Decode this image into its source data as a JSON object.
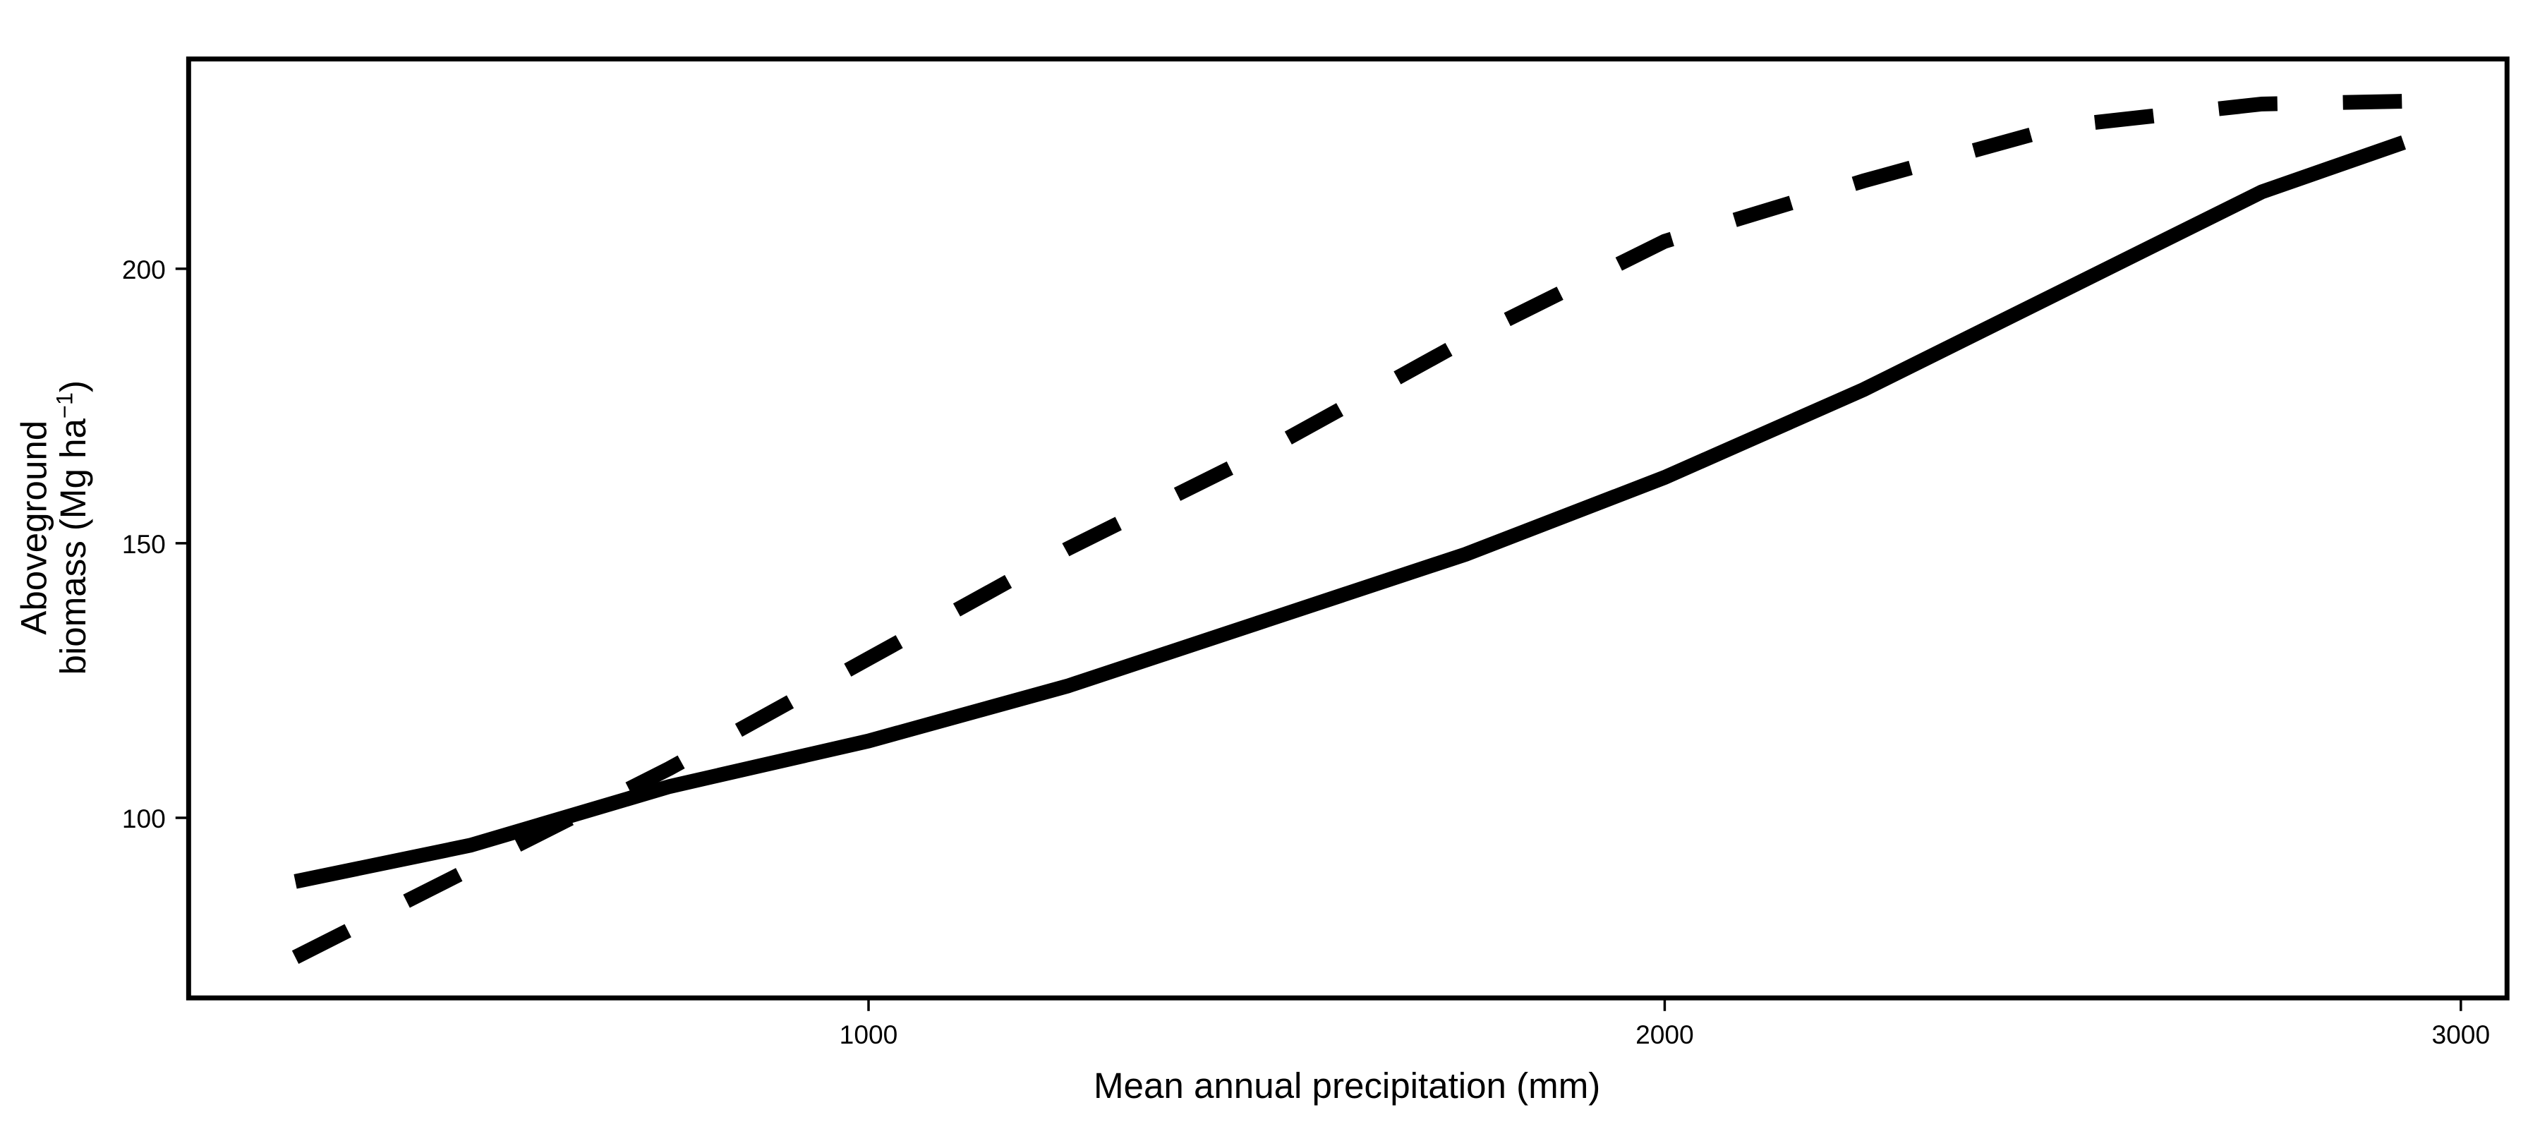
{
  "chart_data": {
    "type": "line",
    "xlabel": "Mean annual precipitation (mm)",
    "ylabel": {
      "line1": "Aboveground",
      "line2": "biomass (Mg ha",
      "sup": "−1",
      "close": ")"
    },
    "x": [
      280,
      500,
      750,
      1000,
      1250,
      1500,
      1750,
      2000,
      2250,
      2500,
      2750,
      2928
    ],
    "series": [
      {
        "color": "#000000",
        "style": "solid",
        "values": [
          88.4,
          95,
          105.7,
          114,
          124,
          136,
          148,
          162,
          178,
          196,
          214,
          223
        ]
      },
      {
        "color": "#000000",
        "style": "dashed",
        "values": [
          74.6,
          90.7,
          109,
          129,
          149,
          167,
          187,
          205,
          216,
          226,
          230,
          230.5
        ]
      }
    ],
    "xlim": [
      146,
      3058
    ],
    "xticks": [
      1000,
      2000,
      3000
    ],
    "ylim": [
      67.2,
      238.2
    ],
    "yticks": [
      100,
      150,
      200
    ]
  }
}
